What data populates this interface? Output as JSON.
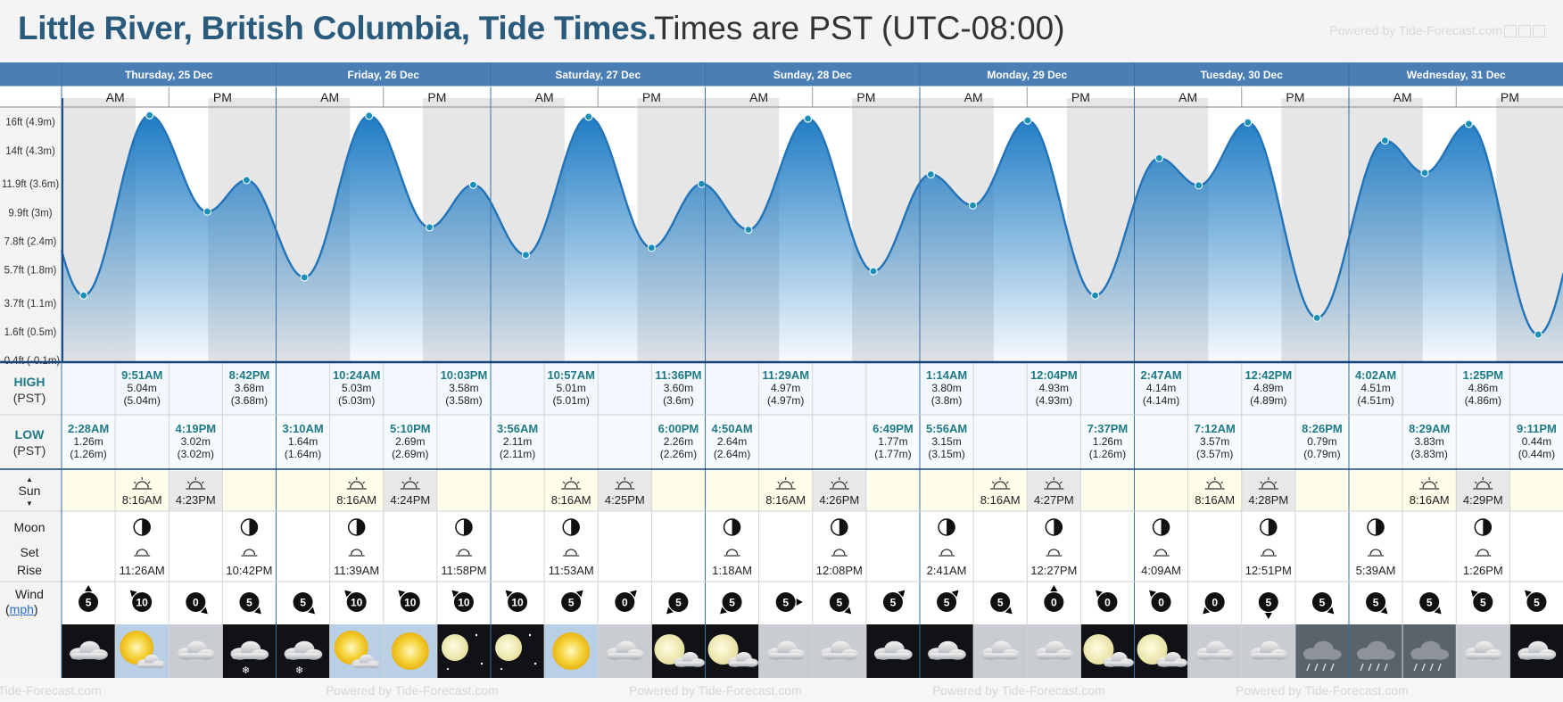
{
  "title": "Little River, British Columbia, Tide Times.",
  "subtitle": "Times are PST (UTC-08:00)",
  "powered_by": "Powered by Tide-Forecast.com",
  "colors": {
    "header_blue": "#4a7eb5",
    "tide_fill_top": "#2e86c8",
    "tide_line": "#2373b8",
    "night_bg": "#e6e6e6",
    "sun_bg": "#fdfde9",
    "high_low_label": "#1f7a86"
  },
  "days": [
    {
      "label": "Thursday, 25 Dec",
      "am": "AM",
      "pm": "PM",
      "highs": [
        {
          "time": "9:51AM",
          "m": "5.04m",
          "paren": "(5.04m)"
        },
        {
          "time": "8:42PM",
          "m": "3.68m",
          "paren": "(3.68m)"
        }
      ],
      "lows": [
        {
          "time": "2:28AM",
          "m": "1.26m",
          "paren": "(1.26m)"
        },
        {
          "time": "4:19PM",
          "m": "3.02m",
          "paren": "(3.02m)"
        }
      ],
      "sunrise": "8:16AM",
      "sunset": "4:23PM",
      "moon": [
        {
          "time": "11:26AM",
          "event": "moonrise-icon"
        },
        {
          "time": "10:42PM",
          "event": "moonset-icon"
        }
      ],
      "wind": [
        {
          "speed": "5",
          "dir": 180
        },
        {
          "speed": "10",
          "dir": 135
        },
        {
          "speed": "0",
          "dir": 315
        },
        {
          "speed": "5",
          "dir": 315
        }
      ],
      "weather": [
        "cloudy-icon",
        "partly-sunny-icon",
        "cloudy-icon",
        "snow-cloud-icon"
      ]
    },
    {
      "label": "Friday, 26 Dec",
      "am": "AM",
      "pm": "PM",
      "highs": [
        {
          "time": "10:24AM",
          "m": "5.03m",
          "paren": "(5.03m)"
        },
        {
          "time": "10:03PM",
          "m": "3.58m",
          "paren": "(3.58m)"
        }
      ],
      "lows": [
        {
          "time": "3:10AM",
          "m": "1.64m",
          "paren": "(1.64m)"
        },
        {
          "time": "5:10PM",
          "m": "2.69m",
          "paren": "(2.69m)"
        }
      ],
      "sunrise": "8:16AM",
      "sunset": "4:24PM",
      "moon": [
        {
          "time": "11:39AM",
          "event": "moonrise-icon"
        },
        {
          "time": "11:58PM",
          "event": "moonset-icon"
        }
      ],
      "wind": [
        {
          "speed": "5",
          "dir": 315
        },
        {
          "speed": "10",
          "dir": 135
        },
        {
          "speed": "10",
          "dir": 135
        },
        {
          "speed": "10",
          "dir": 135
        }
      ],
      "weather": [
        "snow-cloud-icon",
        "partly-sunny-icon",
        "sunny-icon",
        "clear-night-icon"
      ]
    },
    {
      "label": "Saturday, 27 Dec",
      "am": "AM",
      "pm": "PM",
      "highs": [
        {
          "time": "10:57AM",
          "m": "5.01m",
          "paren": "(5.01m)"
        },
        {
          "time": "11:36PM",
          "m": "3.60m",
          "paren": "(3.6m)"
        }
      ],
      "lows": [
        {
          "time": "3:56AM",
          "m": "2.11m",
          "paren": "(2.11m)"
        },
        {
          "time": "6:00PM",
          "m": "2.26m",
          "paren": "(2.26m)"
        }
      ],
      "sunrise": "8:16AM",
      "sunset": "4:25PM",
      "moon": [
        {
          "time": "11:53AM",
          "event": "moonrise-icon"
        }
      ],
      "wind": [
        {
          "speed": "10",
          "dir": 135
        },
        {
          "speed": "5",
          "dir": 225
        },
        {
          "speed": "0",
          "dir": 225
        },
        {
          "speed": "5",
          "dir": 45
        }
      ],
      "weather": [
        "clear-night-icon",
        "sunny-icon",
        "cloudy-icon",
        "cloudy-moon-icon"
      ]
    },
    {
      "label": "Sunday, 28 Dec",
      "am": "AM",
      "pm": "PM",
      "highs": [
        {
          "time": "11:29AM",
          "m": "4.97m",
          "paren": "(4.97m)"
        }
      ],
      "lows": [
        {
          "time": "4:50AM",
          "m": "2.64m",
          "paren": "(2.64m)"
        },
        {
          "time": "6:49PM",
          "m": "1.77m",
          "paren": "(1.77m)"
        }
      ],
      "sunrise": "8:16AM",
      "sunset": "4:26PM",
      "moon": [
        {
          "time": "1:18AM",
          "event": "moonset-icon"
        },
        {
          "time": "12:08PM",
          "event": "moonrise-icon"
        }
      ],
      "wind": [
        {
          "speed": "5",
          "dir": 45
        },
        {
          "speed": "5",
          "dir": 270
        },
        {
          "speed": "5",
          "dir": 315
        },
        {
          "speed": "5",
          "dir": 225
        }
      ],
      "weather": [
        "cloudy-moon-icon",
        "cloudy-icon",
        "cloudy-icon",
        "cloudy-icon"
      ]
    },
    {
      "label": "Monday, 29 Dec",
      "am": "AM",
      "pm": "PM",
      "highs": [
        {
          "time": "1:14AM",
          "m": "3.80m",
          "paren": "(3.8m)"
        },
        {
          "time": "12:04PM",
          "m": "4.93m",
          "paren": "(4.93m)"
        }
      ],
      "lows": [
        {
          "time": "5:56AM",
          "m": "3.15m",
          "paren": "(3.15m)"
        },
        {
          "time": "7:37PM",
          "m": "1.26m",
          "paren": "(1.26m)"
        }
      ],
      "sunrise": "8:16AM",
      "sunset": "4:27PM",
      "moon": [
        {
          "time": "2:41AM",
          "event": "moonset-icon"
        },
        {
          "time": "12:27PM",
          "event": "moonrise-icon"
        }
      ],
      "wind": [
        {
          "speed": "5",
          "dir": 225
        },
        {
          "speed": "5",
          "dir": 315
        },
        {
          "speed": "0",
          "dir": 180
        },
        {
          "speed": "0",
          "dir": 135
        }
      ],
      "weather": [
        "cloudy-icon",
        "cloudy-icon",
        "cloudy-icon",
        "cloudy-moon-icon"
      ]
    },
    {
      "label": "Tuesday, 30 Dec",
      "am": "AM",
      "pm": "PM",
      "highs": [
        {
          "time": "2:47AM",
          "m": "4.14m",
          "paren": "(4.14m)"
        },
        {
          "time": "12:42PM",
          "m": "4.89m",
          "paren": "(4.89m)"
        }
      ],
      "lows": [
        {
          "time": "7:12AM",
          "m": "3.57m",
          "paren": "(3.57m)"
        },
        {
          "time": "8:26PM",
          "m": "0.79m",
          "paren": "(0.79m)"
        }
      ],
      "sunrise": "8:16AM",
      "sunset": "4:28PM",
      "moon": [
        {
          "time": "4:09AM",
          "event": "moonset-icon"
        },
        {
          "time": "12:51PM",
          "event": "moonrise-icon"
        }
      ],
      "wind": [
        {
          "speed": "0",
          "dir": 135
        },
        {
          "speed": "0",
          "dir": 45
        },
        {
          "speed": "5",
          "dir": 0
        },
        {
          "speed": "5",
          "dir": 315
        }
      ],
      "weather": [
        "cloudy-moon-icon",
        "cloudy-icon",
        "cloudy-icon",
        "rain-cloud-icon"
      ]
    },
    {
      "label": "Wednesday, 31 Dec",
      "am": "AM",
      "pm": "PM",
      "highs": [
        {
          "time": "4:02AM",
          "m": "4.51m",
          "paren": "(4.51m)"
        },
        {
          "time": "1:25PM",
          "m": "4.86m",
          "paren": "(4.86m)"
        }
      ],
      "lows": [
        {
          "time": "8:29AM",
          "m": "3.83m",
          "paren": "(3.83m)"
        },
        {
          "time": "9:11PM",
          "m": "0.44m",
          "paren": "(0.44m)"
        }
      ],
      "sunrise": "8:16AM",
      "sunset": "4:29PM",
      "moon": [
        {
          "time": "5:39AM",
          "event": "moonset-icon"
        },
        {
          "time": "1:26PM",
          "event": "moonrise-icon"
        }
      ],
      "wind": [
        {
          "speed": "5",
          "dir": 315
        },
        {
          "speed": "5",
          "dir": 315
        },
        {
          "speed": "5",
          "dir": 135
        },
        {
          "speed": "5",
          "dir": 135
        }
      ],
      "weather": [
        "rain-cloud-icon",
        "rain-cloud-icon",
        "cloudy-icon",
        "cloudy-icon"
      ]
    }
  ],
  "row_labels": {
    "high": "HIGH",
    "low": "LOW",
    "tz": "(PST)",
    "sun": "Sun",
    "moon": "Moon",
    "set": "Set",
    "rise": "Rise",
    "wind": "Wind",
    "mph": "mph"
  },
  "chart_data": {
    "type": "area",
    "title": "",
    "xlabel": "",
    "ylabel": "",
    "y_ticks": [
      "16ft (4.9m)",
      "14ft (4.3m)",
      "11.9ft (3.6m)",
      "9.9ft (3m)",
      "7.8ft (2.4m)",
      "5.7ft (1.8m)",
      "3.7ft (1.1m)",
      "1.6ft (0.5m)",
      "-0.4ft (-0.1m)"
    ],
    "ylim": [
      -0.12,
      5.4
    ],
    "x_start": "2025-12-25T00:00",
    "x_end": "2026-01-01T00:00",
    "series": [
      {
        "x": [
          "2025-12-25T02:28",
          "2025-12-25T09:51",
          "2025-12-25T16:19",
          "2025-12-25T20:42",
          "2025-12-26T03:10",
          "2025-12-26T10:24",
          "2025-12-26T17:10",
          "2025-12-26T22:03",
          "2025-12-27T03:56",
          "2025-12-27T10:57",
          "2025-12-27T18:00",
          "2025-12-27T23:36",
          "2025-12-28T04:50",
          "2025-12-28T11:29",
          "2025-12-28T18:49",
          "2025-12-29T01:14",
          "2025-12-29T05:56",
          "2025-12-29T12:04",
          "2025-12-29T19:37",
          "2025-12-30T02:47",
          "2025-12-30T07:12",
          "2025-12-30T12:42",
          "2025-12-30T20:26",
          "2025-12-31T04:02",
          "2025-12-31T08:29",
          "2025-12-31T13:25",
          "2025-12-31T21:11"
        ],
        "values": [
          1.26,
          5.04,
          3.02,
          3.68,
          1.64,
          5.03,
          2.69,
          3.58,
          2.11,
          5.01,
          2.26,
          3.6,
          2.64,
          4.97,
          1.77,
          3.8,
          3.15,
          4.93,
          1.26,
          4.14,
          3.57,
          4.89,
          0.79,
          4.51,
          3.83,
          4.86,
          0.44
        ]
      }
    ]
  }
}
